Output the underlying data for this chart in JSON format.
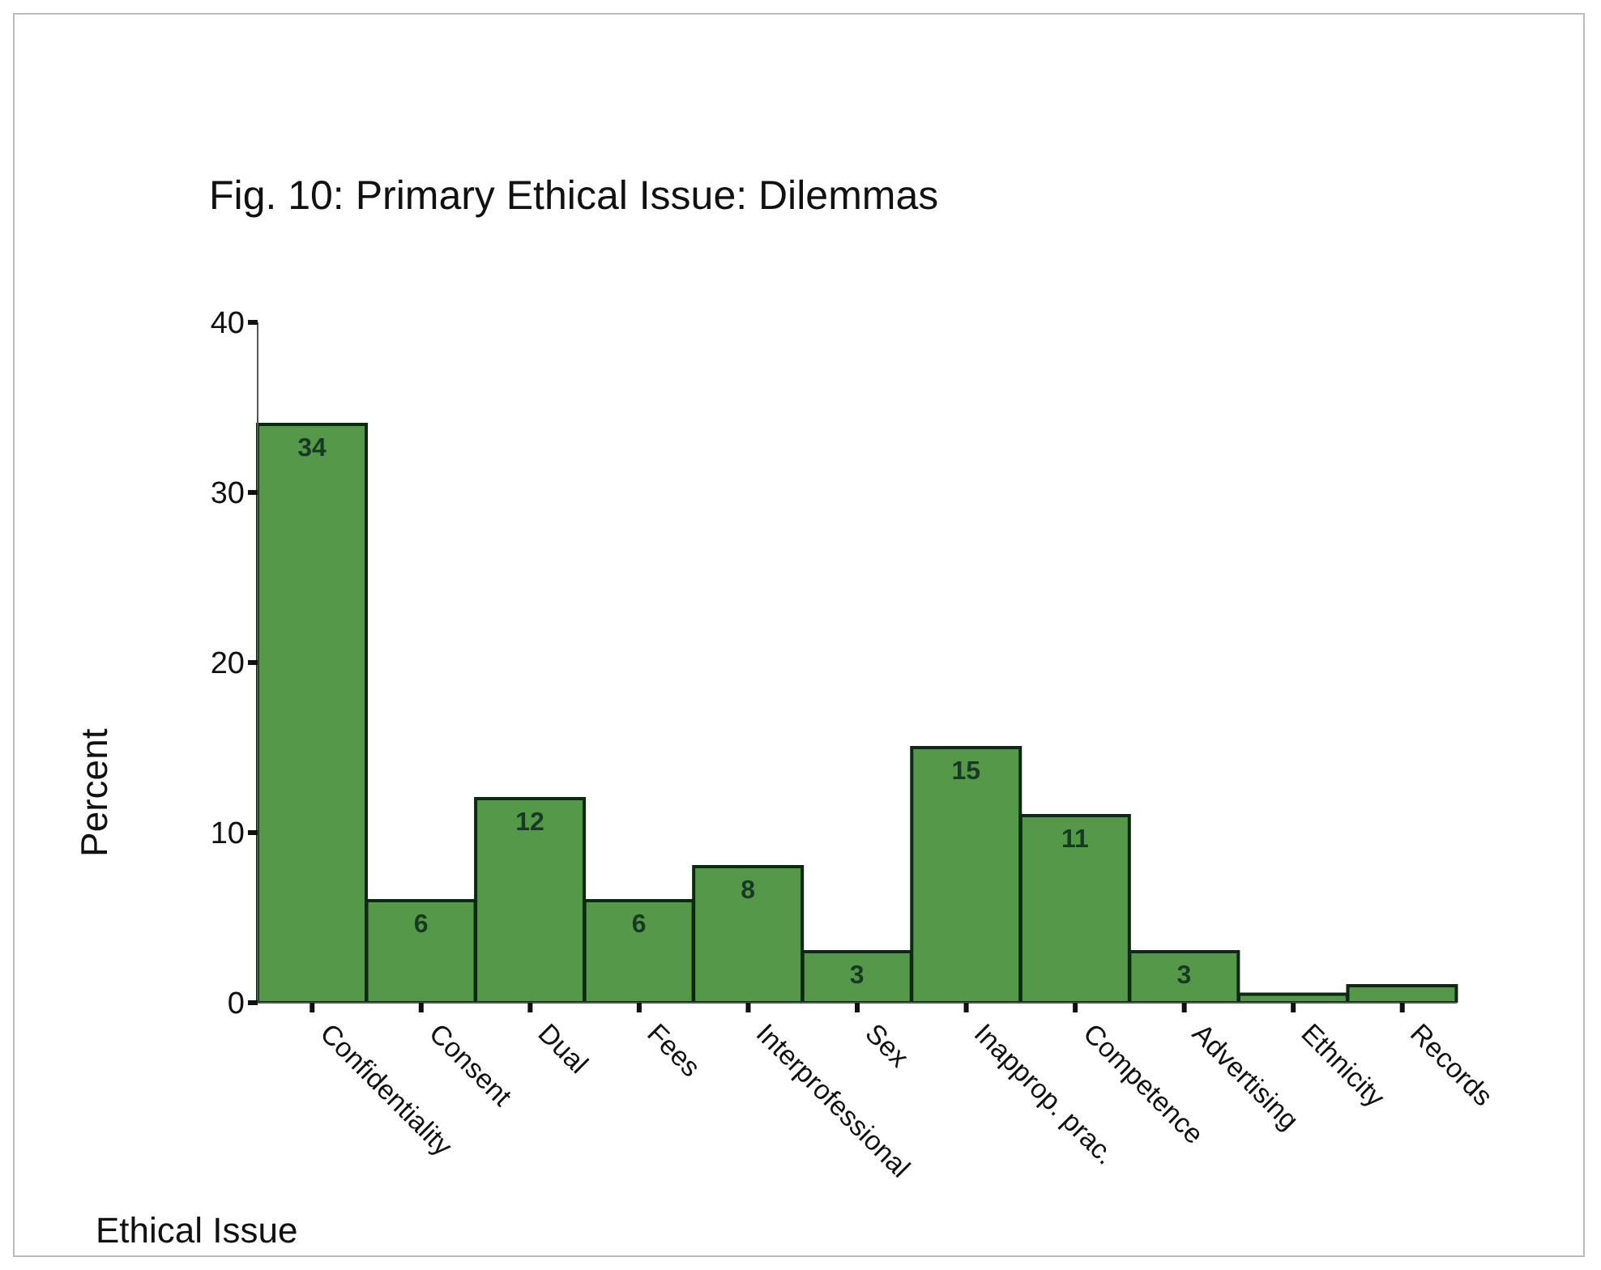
{
  "chart_data": {
    "type": "bar",
    "title": "Fig. 10:  Primary Ethical Issue: Dilemmas",
    "xlabel": "Ethical Issue",
    "ylabel": "Percent",
    "categories": [
      "Confidentiality",
      "Consent",
      "Dual",
      "Fees",
      "Interprofessional",
      "Sex",
      "Inapprop. prac.",
      "Competence",
      "Advertising",
      "Ethnicity",
      "Records"
    ],
    "values": [
      34,
      6,
      12,
      6,
      8,
      3,
      15,
      11,
      3,
      0.5,
      1
    ],
    "value_labels": [
      "34",
      "6",
      "12",
      "6",
      "8",
      "3",
      "15",
      "11",
      "3",
      null,
      null
    ],
    "color": "#56984a",
    "ylim": [
      0,
      40
    ],
    "yticks": [
      0,
      10,
      20,
      30,
      40
    ]
  }
}
